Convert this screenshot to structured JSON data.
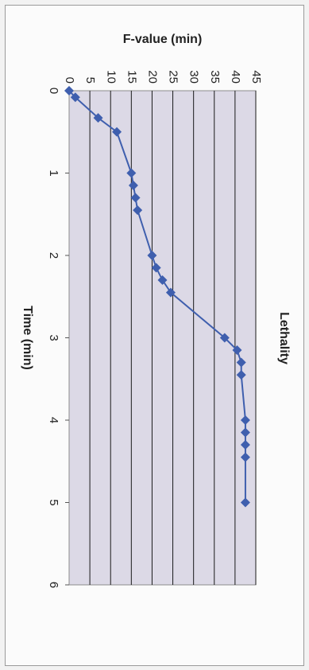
{
  "chart_data": {
    "type": "scatter",
    "title": "Lethality",
    "xlabel": "Time (min)",
    "ylabel": "F-value (min)",
    "xlim": [
      0,
      6
    ],
    "ylim": [
      0,
      45
    ],
    "xticks": [
      0,
      1,
      2,
      3,
      4,
      5,
      6
    ],
    "yticks": [
      0,
      5,
      10,
      15,
      20,
      25,
      30,
      35,
      40,
      45
    ],
    "grid": true,
    "orientation": "rotated-90-clockwise",
    "series": [
      {
        "color": "#3f5fae",
        "marker": "diamond",
        "x": [
          0,
          0.08,
          0.33,
          0.5,
          1.0,
          1.15,
          1.3,
          1.45,
          2.0,
          2.15,
          2.3,
          2.45,
          3.0,
          3.15,
          3.3,
          3.45,
          4.0,
          4.15,
          4.3,
          4.45,
          5.0
        ],
        "y": [
          0,
          1.5,
          7,
          11.5,
          15,
          15.5,
          16,
          16.5,
          20,
          21,
          22.5,
          24.5,
          37.5,
          40.5,
          41.5,
          41.5,
          42.5,
          42.5,
          42.5,
          42.5,
          42.5
        ]
      }
    ]
  }
}
